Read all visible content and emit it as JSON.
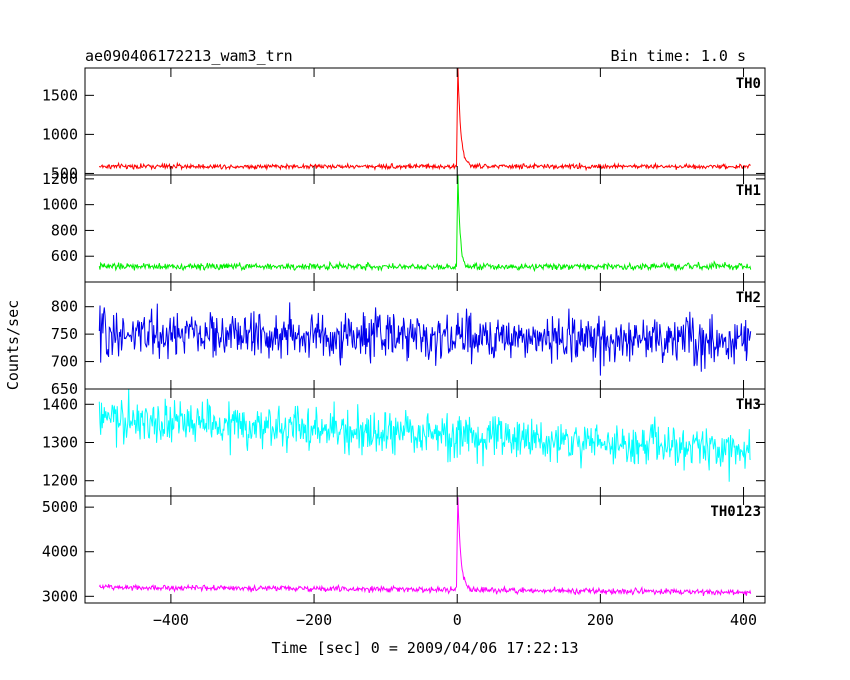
{
  "chart_data": {
    "type": "line",
    "title": "ae090406172213_wam3_trn",
    "subtitle": "Bin time: 1.0 s",
    "xlabel": "Time [sec] 0 = 2009/04/06 17:22:13",
    "ylabel": "Counts/sec",
    "xlim": [
      -520,
      430
    ],
    "xticks": [
      -400,
      -200,
      0,
      200,
      400
    ],
    "grid": false,
    "panels": [
      {
        "name": "TH0",
        "color": "#ff0000",
        "ylim": [
          480,
          1850
        ],
        "yticks": [
          500,
          1000,
          1500
        ],
        "baseline": 590,
        "noise": 22,
        "trend": 0,
        "peak": {
          "x": 1,
          "value": 1850,
          "decay_s": 4
        },
        "samples": [
          {
            "x": -500,
            "y": 592
          },
          {
            "x": -400,
            "y": 590
          },
          {
            "x": -300,
            "y": 585
          },
          {
            "x": -200,
            "y": 588
          },
          {
            "x": -100,
            "y": 584
          },
          {
            "x": 0,
            "y": 610
          },
          {
            "x": 1,
            "y": 1850
          },
          {
            "x": 10,
            "y": 700
          },
          {
            "x": 30,
            "y": 600
          },
          {
            "x": 100,
            "y": 588
          },
          {
            "x": 200,
            "y": 590
          },
          {
            "x": 300,
            "y": 589
          },
          {
            "x": 410,
            "y": 590
          }
        ]
      },
      {
        "name": "TH1",
        "color": "#00ee00",
        "ylim": [
          400,
          1230
        ],
        "yticks": [
          600,
          800,
          1000,
          1200
        ],
        "baseline": 520,
        "noise": 18,
        "trend": 0,
        "peak": {
          "x": 1,
          "value": 1230,
          "decay_s": 3
        },
        "samples": [
          {
            "x": -500,
            "y": 525
          },
          {
            "x": -400,
            "y": 520
          },
          {
            "x": -300,
            "y": 518
          },
          {
            "x": -200,
            "y": 515
          },
          {
            "x": -100,
            "y": 516
          },
          {
            "x": 1,
            "y": 1230
          },
          {
            "x": 10,
            "y": 580
          },
          {
            "x": 100,
            "y": 518
          },
          {
            "x": 200,
            "y": 520
          },
          {
            "x": 410,
            "y": 522
          }
        ]
      },
      {
        "name": "TH2",
        "color": "#0000ee",
        "ylim": [
          650,
          845
        ],
        "yticks": [
          650,
          700,
          750,
          800
        ],
        "baseline": 745,
        "noise": 30,
        "trend": -6,
        "peak": null,
        "samples": [
          {
            "x": -500,
            "y": 750
          },
          {
            "x": -400,
            "y": 748
          },
          {
            "x": -300,
            "y": 745
          },
          {
            "x": -200,
            "y": 742
          },
          {
            "x": -100,
            "y": 738
          },
          {
            "x": 0,
            "y": 740
          },
          {
            "x": 100,
            "y": 738
          },
          {
            "x": 200,
            "y": 736
          },
          {
            "x": 300,
            "y": 738
          },
          {
            "x": 410,
            "y": 736
          }
        ]
      },
      {
        "name": "TH3",
        "color": "#00ffff",
        "ylim": [
          1160,
          1440
        ],
        "yticks": [
          1200,
          1300,
          1400
        ],
        "baseline": 1320,
        "noise": 40,
        "trend": -40,
        "peak": null,
        "samples": [
          {
            "x": -500,
            "y": 1345
          },
          {
            "x": -400,
            "y": 1340
          },
          {
            "x": -300,
            "y": 1330
          },
          {
            "x": -200,
            "y": 1320
          },
          {
            "x": -100,
            "y": 1310
          },
          {
            "x": 0,
            "y": 1305
          },
          {
            "x": 100,
            "y": 1300
          },
          {
            "x": 200,
            "y": 1295
          },
          {
            "x": 300,
            "y": 1290
          },
          {
            "x": 410,
            "y": 1288
          }
        ]
      },
      {
        "name": "TH0123",
        "color": "#ff00ff",
        "ylim": [
          2850,
          5250
        ],
        "yticks": [
          3000,
          4000,
          5000
        ],
        "baseline": 3150,
        "noise": 45,
        "trend": -60,
        "peak": {
          "x": 1,
          "value": 5250,
          "decay_s": 4
        },
        "samples": [
          {
            "x": -500,
            "y": 3230
          },
          {
            "x": -400,
            "y": 3200
          },
          {
            "x": -300,
            "y": 3180
          },
          {
            "x": -200,
            "y": 3160
          },
          {
            "x": -100,
            "y": 3140
          },
          {
            "x": 1,
            "y": 5250
          },
          {
            "x": 10,
            "y": 3400
          },
          {
            "x": 100,
            "y": 3150
          },
          {
            "x": 200,
            "y": 3140
          },
          {
            "x": 410,
            "y": 3120
          }
        ]
      }
    ]
  }
}
